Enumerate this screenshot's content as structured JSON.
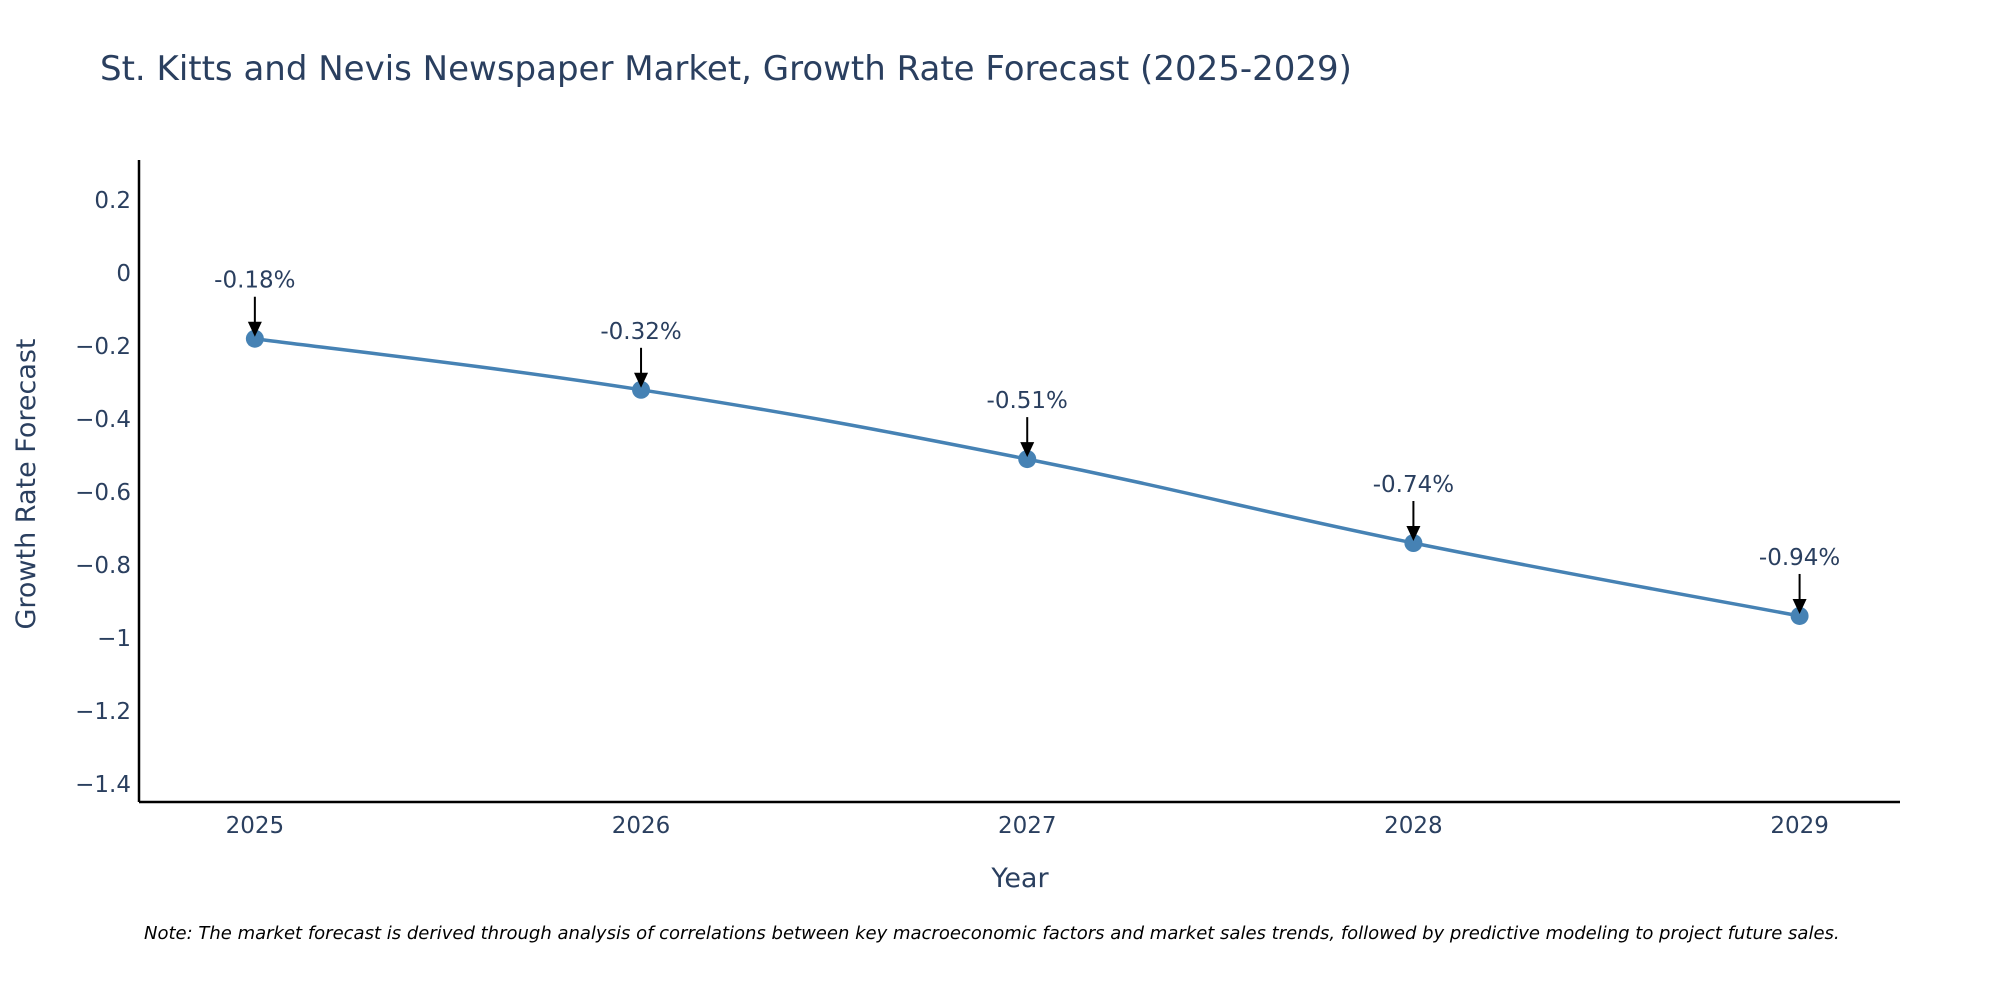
{
  "chart_data": {
    "type": "line",
    "title": "St. Kitts and Nevis Newspaper Market, Growth Rate Forecast (2025-2029)",
    "xlabel": "Year",
    "ylabel": "Growth Rate Forecast",
    "x": [
      2025,
      2026,
      2027,
      2028,
      2029
    ],
    "x_tick_labels": [
      "2025",
      "2026",
      "2027",
      "2028",
      "2029"
    ],
    "xlim": [
      2024.7,
      2029.26
    ],
    "ylim": [
      -1.45,
      0.31
    ],
    "y_ticks": [
      0.2,
      0,
      -0.2,
      -0.4,
      -0.6,
      -0.8,
      -1,
      -1.2,
      -1.4
    ],
    "y_tick_labels": [
      "0.2",
      "0",
      "−0.2",
      "−0.4",
      "−0.6",
      "−0.8",
      "−1",
      "−1.2",
      "−1.4"
    ],
    "series": [
      {
        "name": "Growth Rate Forecast",
        "values": [
          -0.18,
          -0.32,
          -0.51,
          -0.74,
          -0.94
        ],
        "color": "#4682b4"
      }
    ],
    "annotations": [
      "-0.18%",
      "-0.32%",
      "-0.51%",
      "-0.74%",
      "-0.94%"
    ],
    "grid": false,
    "note": "Note: The market forecast is derived through analysis of correlations between key macroeconomic factors and market sales trends, followed by predictive modeling to project future sales."
  },
  "colors": {
    "line": "#4682b4",
    "marker": "#4682b4",
    "text": "#2a3f5f",
    "axis": "#000000",
    "arrow": "#000000"
  }
}
